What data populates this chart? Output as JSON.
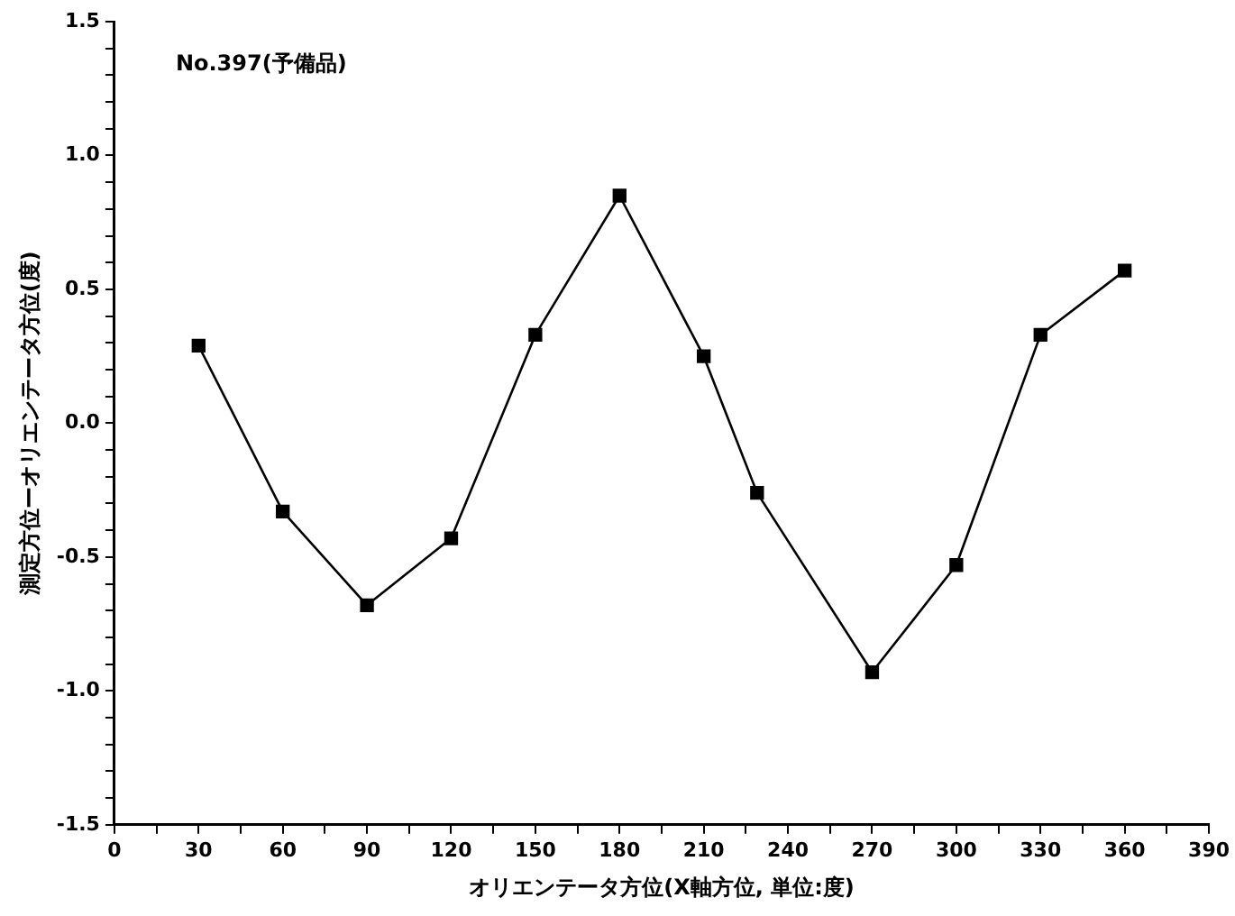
{
  "chart_data": {
    "type": "line",
    "title": "No.397(予備品)",
    "xlabel": "オリエンテータ方位(X軸方位, 単位:度)",
    "ylabel": "測定方位ーオリエンテータ方位(度)",
    "x": [
      30,
      60,
      90,
      120,
      150,
      180,
      210,
      229,
      270,
      300,
      330,
      360
    ],
    "series": [
      {
        "color": "#000000",
        "values": [
          0.29,
          -0.33,
          -0.68,
          -0.43,
          0.33,
          0.85,
          0.25,
          -0.26,
          -0.93,
          -0.53,
          0.33,
          0.57
        ]
      }
    ],
    "xlim": [
      0,
      390
    ],
    "xticks": [
      0,
      {
        "value": 15,
        "label": null
      },
      30,
      {
        "value": 45,
        "label": null
      },
      60,
      {
        "value": 75,
        "label": null
      },
      90,
      {
        "value": 105,
        "label": null
      },
      120,
      {
        "value": 135,
        "label": null
      },
      150,
      {
        "value": 165,
        "label": null
      },
      180,
      {
        "value": 195,
        "label": null
      },
      210,
      {
        "value": 225,
        "label": null
      },
      240,
      {
        "value": 255,
        "label": null
      },
      270,
      {
        "value": 285,
        "label": null
      },
      300,
      {
        "value": 315,
        "label": null
      },
      330,
      {
        "value": 345,
        "label": null
      },
      360,
      {
        "value": 375,
        "label": null
      },
      390
    ],
    "ylim": [
      -1.5,
      1.5
    ],
    "yticks": [
      {
        "value": -1.5,
        "label": "-1.5"
      },
      {
        "value": -1.4,
        "label": null
      },
      {
        "value": -1.3,
        "label": null
      },
      {
        "value": -1.2,
        "label": null
      },
      {
        "value": -1.1,
        "label": null
      },
      {
        "value": -1,
        "label": "-1.0"
      },
      {
        "value": -0.9,
        "label": null
      },
      {
        "value": -0.8,
        "label": null
      },
      {
        "value": -0.7,
        "label": null
      },
      {
        "value": -0.6,
        "label": null
      },
      {
        "value": -0.5,
        "label": "-0.5"
      },
      {
        "value": -0.4,
        "label": null
      },
      {
        "value": -0.3,
        "label": null
      },
      {
        "value": -0.2,
        "label": null
      },
      {
        "value": -0.1,
        "label": null
      },
      {
        "value": 0,
        "label": "0.0"
      },
      {
        "value": 0.1,
        "label": null
      },
      {
        "value": 0.2,
        "label": null
      },
      {
        "value": 0.3,
        "label": null
      },
      {
        "value": 0.4,
        "label": null
      },
      {
        "value": 0.5,
        "label": "0.5"
      },
      {
        "value": 0.6,
        "label": null
      },
      {
        "value": 0.7,
        "label": null
      },
      {
        "value": 0.8,
        "label": null
      },
      {
        "value": 0.9,
        "label": null
      },
      {
        "value": 1,
        "label": "1.0"
      },
      {
        "value": 1.1,
        "label": null
      },
      {
        "value": 1.2,
        "label": null
      },
      {
        "value": 1.3,
        "label": null
      },
      {
        "value": 1.4,
        "label": null
      },
      {
        "value": 1.5,
        "label": "1.5"
      }
    ],
    "grid": false,
    "legend": false,
    "marker": "square",
    "line_style": "solid"
  }
}
